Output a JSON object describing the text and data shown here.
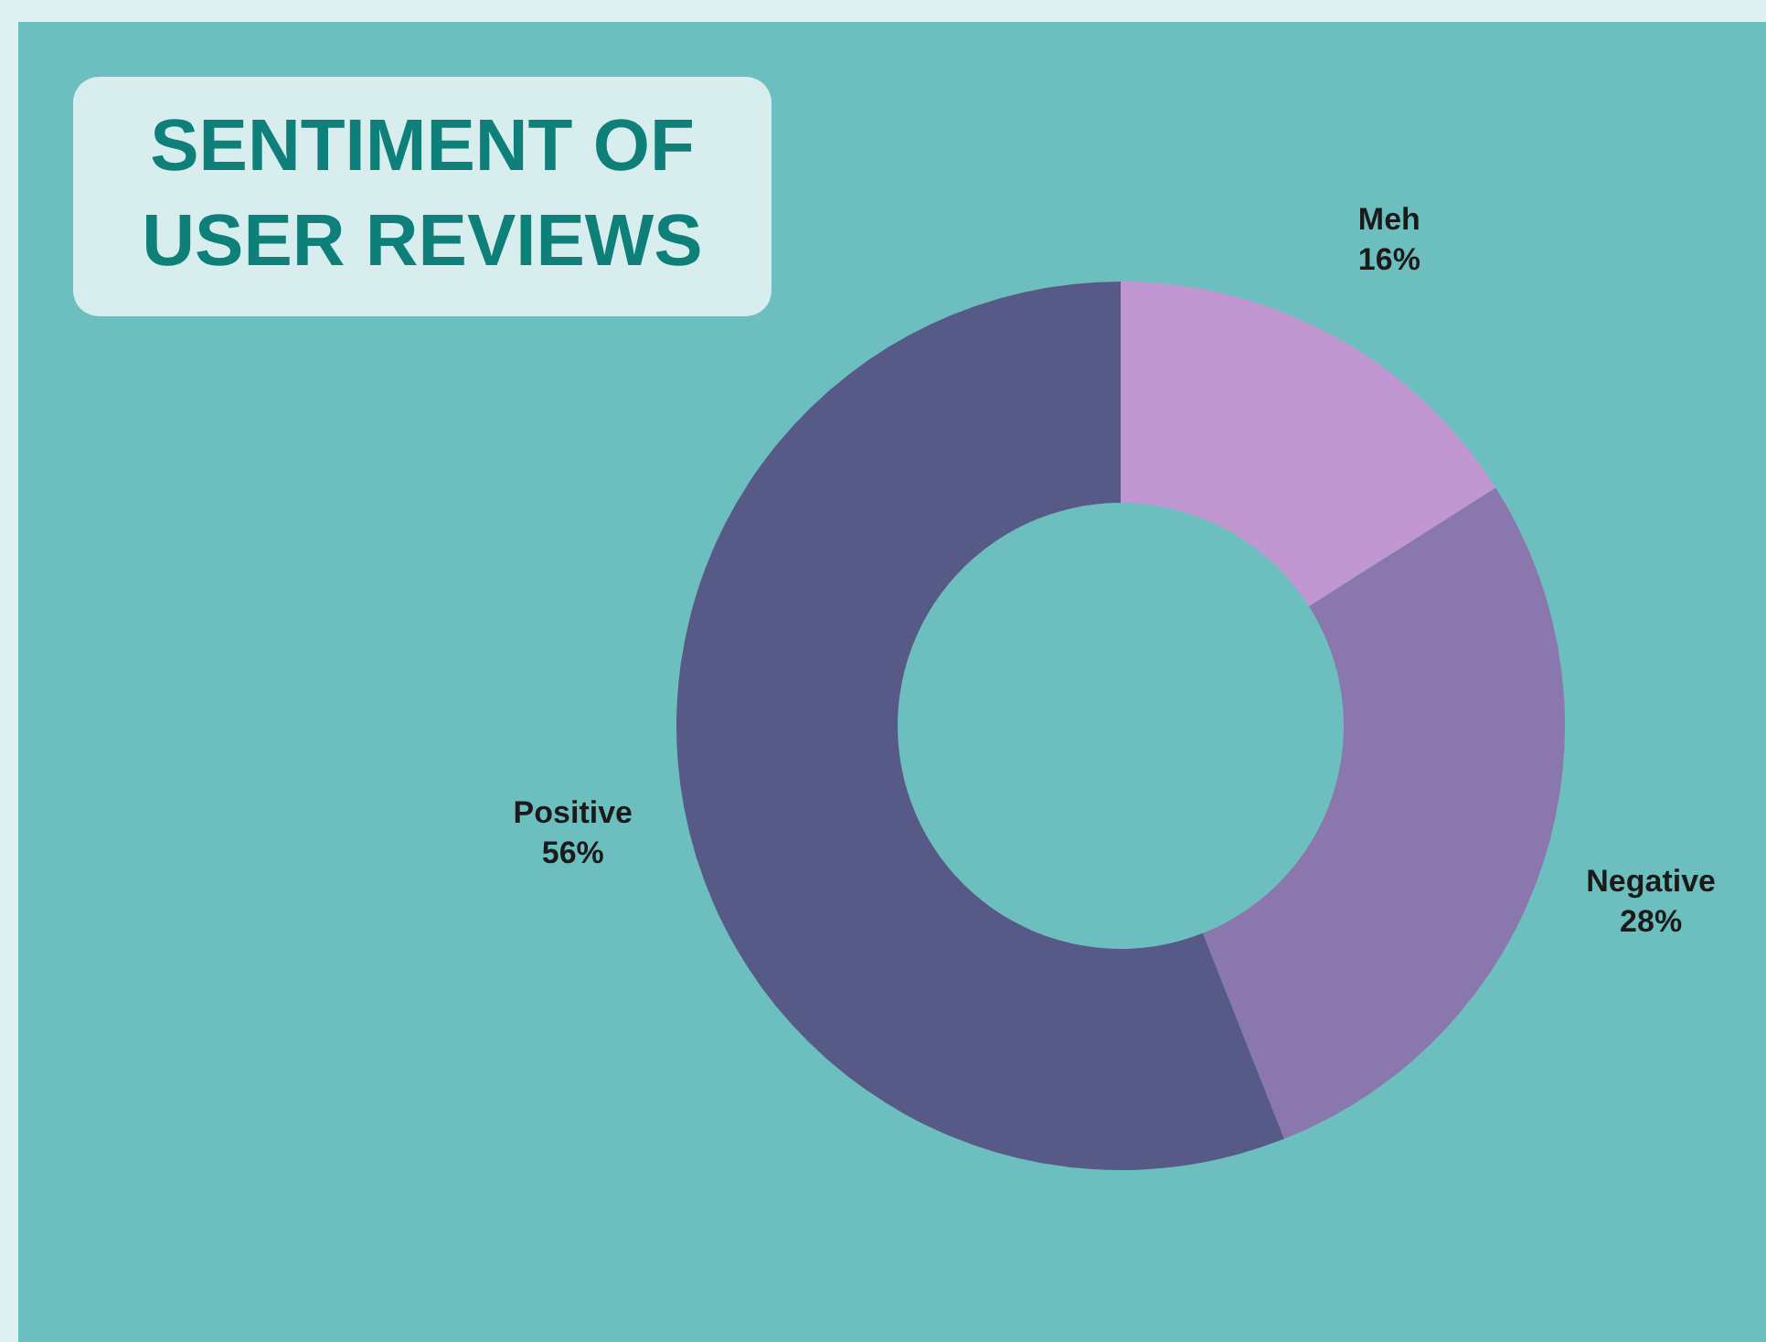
{
  "chart_data": {
    "type": "donut",
    "title": "SENTIMENT OF USER REVIEWS",
    "categories": [
      "Meh",
      "Negative",
      "Positive"
    ],
    "values": [
      16,
      28,
      56
    ],
    "value_labels": [
      "16%",
      "28%",
      "56%"
    ],
    "colors": [
      "#c197d2",
      "#8a77ad",
      "#575a87"
    ]
  }
}
